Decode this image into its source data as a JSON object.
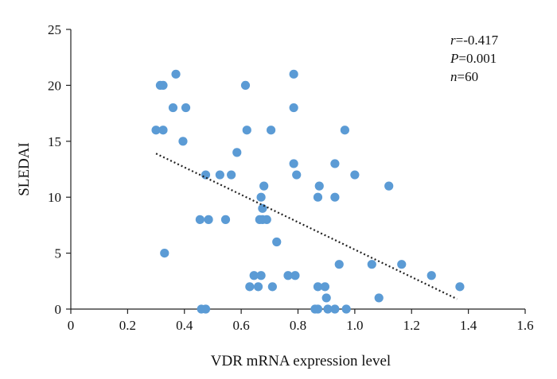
{
  "chart_data": {
    "type": "scatter",
    "xlabel": "VDR mRNA expression level",
    "ylabel": "SLEDAI",
    "xlim": [
      0,
      1.6
    ],
    "ylim": [
      0,
      25
    ],
    "x_ticks": [
      0,
      0.2,
      0.4,
      0.6,
      0.8,
      1.0,
      1.2,
      1.4,
      1.6
    ],
    "x_tick_labels": [
      "0",
      "0.2",
      "0.4",
      "0.6",
      "0.8",
      "1.0",
      "1.2",
      "1.4",
      "1.6"
    ],
    "y_ticks": [
      0,
      5,
      10,
      15,
      20,
      25
    ],
    "y_tick_labels": [
      "0",
      "5",
      "10",
      "15",
      "20",
      "25"
    ],
    "grid": false,
    "point_color": "#5b9bd5",
    "trendline": {
      "style": "dotted",
      "color": "#222222",
      "x": [
        0.3,
        1.36
      ],
      "y": [
        13.9,
        0.9
      ]
    },
    "stats": [
      {
        "key": "r",
        "value": "=-0.417"
      },
      {
        "key": "P",
        "value": "=0.001"
      },
      {
        "key": "n",
        "value": "=60"
      }
    ],
    "points": [
      {
        "x": 0.3,
        "y": 16
      },
      {
        "x": 0.315,
        "y": 20
      },
      {
        "x": 0.325,
        "y": 20
      },
      {
        "x": 0.325,
        "y": 16
      },
      {
        "x": 0.33,
        "y": 5
      },
      {
        "x": 0.36,
        "y": 18
      },
      {
        "x": 0.37,
        "y": 21
      },
      {
        "x": 0.395,
        "y": 15
      },
      {
        "x": 0.405,
        "y": 18
      },
      {
        "x": 0.455,
        "y": 8
      },
      {
        "x": 0.46,
        "y": 0
      },
      {
        "x": 0.475,
        "y": 0
      },
      {
        "x": 0.475,
        "y": 12
      },
      {
        "x": 0.485,
        "y": 8
      },
      {
        "x": 0.525,
        "y": 12
      },
      {
        "x": 0.545,
        "y": 8
      },
      {
        "x": 0.565,
        "y": 12
      },
      {
        "x": 0.585,
        "y": 14
      },
      {
        "x": 0.615,
        "y": 20
      },
      {
        "x": 0.62,
        "y": 16
      },
      {
        "x": 0.63,
        "y": 2
      },
      {
        "x": 0.645,
        "y": 3
      },
      {
        "x": 0.66,
        "y": 2
      },
      {
        "x": 0.665,
        "y": 8
      },
      {
        "x": 0.67,
        "y": 10
      },
      {
        "x": 0.67,
        "y": 3
      },
      {
        "x": 0.675,
        "y": 9
      },
      {
        "x": 0.68,
        "y": 11
      },
      {
        "x": 0.69,
        "y": 8
      },
      {
        "x": 0.705,
        "y": 16
      },
      {
        "x": 0.71,
        "y": 2
      },
      {
        "x": 0.725,
        "y": 6
      },
      {
        "x": 0.765,
        "y": 3
      },
      {
        "x": 0.785,
        "y": 21
      },
      {
        "x": 0.785,
        "y": 18
      },
      {
        "x": 0.785,
        "y": 13
      },
      {
        "x": 0.79,
        "y": 3
      },
      {
        "x": 0.795,
        "y": 12
      },
      {
        "x": 0.86,
        "y": 0
      },
      {
        "x": 0.87,
        "y": 10
      },
      {
        "x": 0.87,
        "y": 2
      },
      {
        "x": 0.875,
        "y": 11
      },
      {
        "x": 0.895,
        "y": 2
      },
      {
        "x": 0.9,
        "y": 1
      },
      {
        "x": 0.905,
        "y": 0
      },
      {
        "x": 0.93,
        "y": 0
      },
      {
        "x": 0.93,
        "y": 13
      },
      {
        "x": 0.93,
        "y": 10
      },
      {
        "x": 0.945,
        "y": 4
      },
      {
        "x": 0.965,
        "y": 16
      },
      {
        "x": 0.97,
        "y": 0
      },
      {
        "x": 1.0,
        "y": 12
      },
      {
        "x": 1.06,
        "y": 4
      },
      {
        "x": 1.085,
        "y": 1
      },
      {
        "x": 1.12,
        "y": 11
      },
      {
        "x": 1.165,
        "y": 4
      },
      {
        "x": 1.27,
        "y": 3
      },
      {
        "x": 1.37,
        "y": 2
      },
      {
        "x": 0.87,
        "y": 0
      },
      {
        "x": 0.675,
        "y": 8
      }
    ]
  }
}
